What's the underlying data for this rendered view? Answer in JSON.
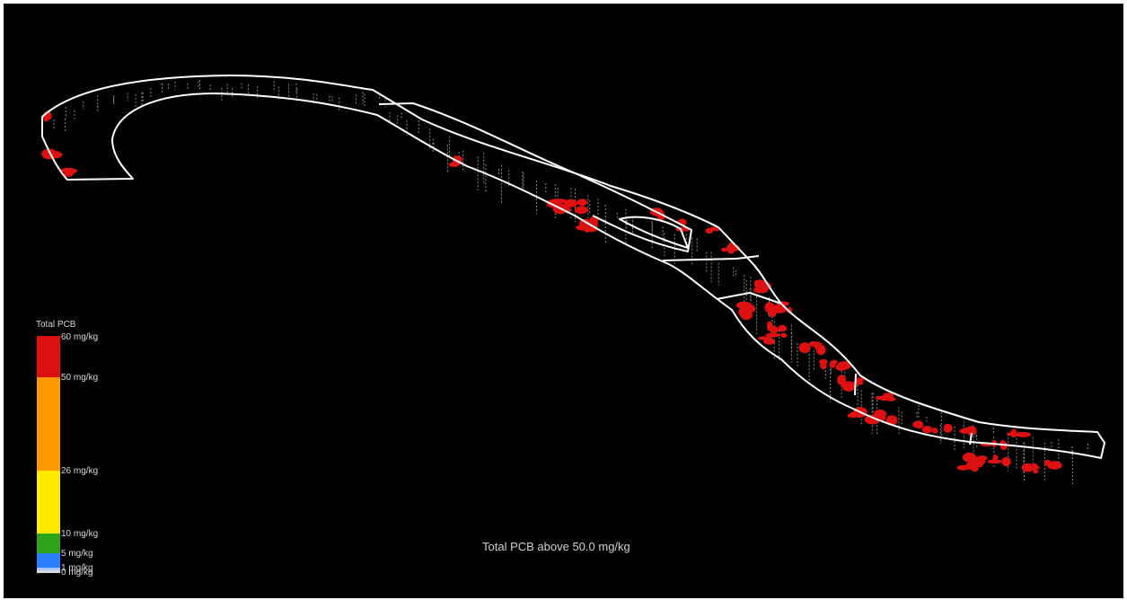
{
  "caption": "Total PCB above 50.0 mg/kg",
  "legend": {
    "title": "Total PCB",
    "bands": [
      {
        "label": "60 mg/kg",
        "color": "#dd0f0f"
      },
      {
        "label": "50 mg/kg",
        "color": "#ff9900"
      },
      {
        "label": "26 mg/kg",
        "color": "#ffea00"
      },
      {
        "label": "10 mg/kg",
        "color": "#2ea31a"
      },
      {
        "label": "5 mg/kg",
        "color": "#2b7fff"
      },
      {
        "label": "1 mg/kg",
        "color": "#a8c4ff"
      },
      {
        "label": "0 mg/kg",
        "color": "#d8d8d8"
      }
    ]
  },
  "colors": {
    "background": "#000000",
    "outline": "#ffffff",
    "hotspot": "#dd1111",
    "sample_line": "#8a8a8a"
  }
}
